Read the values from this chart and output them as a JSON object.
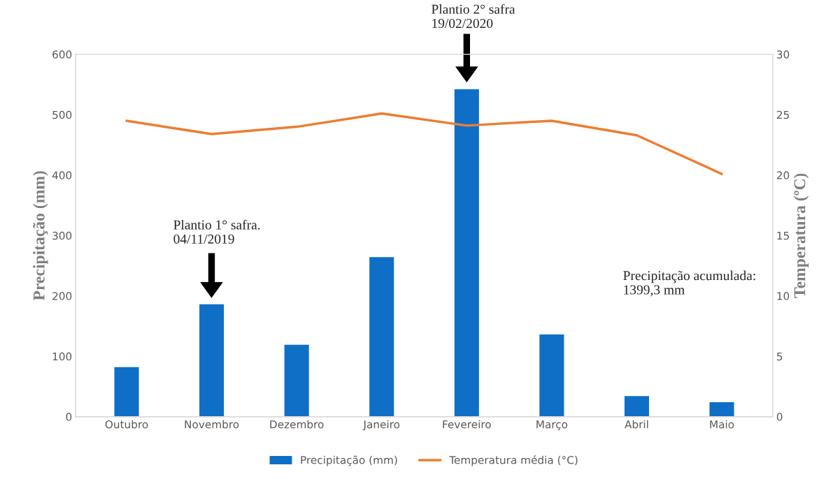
{
  "chart_data": {
    "type": "bar",
    "ylabel": "Precipitação (mm)",
    "y2label": "Temperatura (ºC)",
    "categories": [
      "Outubro",
      "Novembro",
      "Dezembro",
      "Janeiro",
      "Fevereiro",
      "Março",
      "Abril",
      "Maio"
    ],
    "series": [
      {
        "name": "Precipitação (mm)",
        "color": "#0f6fc6",
        "values": [
          83,
          187,
          120,
          265,
          543,
          137,
          35,
          25
        ]
      },
      {
        "name": "Temperatura média (°C)",
        "type": "line",
        "axis": "y2",
        "color": "#ed7d31",
        "values": [
          24.5,
          23.4,
          24.0,
          25.1,
          24.1,
          24.5,
          23.3,
          20.1
        ]
      }
    ],
    "ylim": [
      0,
      600
    ],
    "yticks": [
      0,
      100,
      200,
      300,
      400,
      500,
      600
    ],
    "y2lim": [
      0,
      30
    ],
    "y2ticks": [
      0,
      5,
      10,
      15,
      20,
      25,
      30
    ],
    "annotations": [
      "Plantio 1° safra.\n04/11/2019",
      "Plantio 2° safra\n19/02/2020",
      "Precipitação acumulada:\n1399,3 mm"
    ],
    "grid": false,
    "legend": "bottom",
    "marker": "none",
    "line_style": "solid"
  }
}
